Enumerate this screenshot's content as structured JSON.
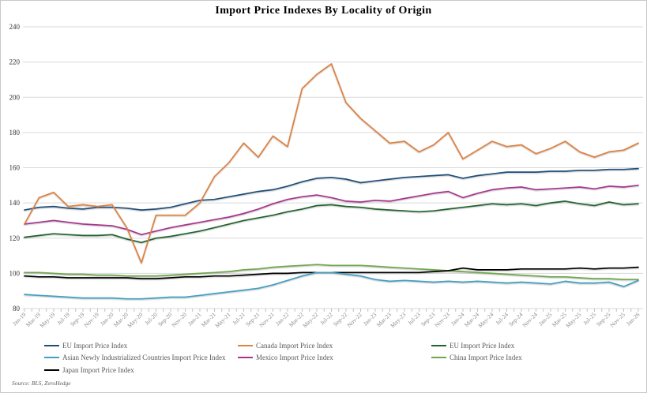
{
  "title": "Import Price Indexes By Locality of Origin",
  "source_note": "Source: BLS, ZeroHedge",
  "chart_data": {
    "type": "line",
    "title": "Import Price Indexes By Locality of Origin",
    "xlabel": "",
    "ylabel": "",
    "ylim": [
      80,
      240
    ],
    "y_ticks": [
      80,
      100,
      120,
      140,
      160,
      180,
      200,
      220,
      240
    ],
    "grid": "horizontal",
    "legend_position": "bottom",
    "x_interval": "2 months",
    "x_tick_labels": [
      "Jan-19",
      "Mar-19",
      "May-19",
      "Jul-19",
      "Sep-19",
      "Nov-19",
      "Jan-20",
      "Mar-20",
      "May-20",
      "Jul-20",
      "Sep-20",
      "Nov-20",
      "Jan-21",
      "Mar-21",
      "May-21",
      "Jul-21",
      "Sep-21",
      "Nov-21",
      "Jan-22",
      "Mar-22",
      "May-22",
      "Jul-22",
      "Sep-22",
      "Nov-22",
      "Jan-23",
      "Mar-23",
      "May-23",
      "Jul-23",
      "Sep-23",
      "Nov-23",
      "Jan-24",
      "Mar-24",
      "May-24",
      "Jul-24",
      "Sep-24",
      "Nov-24",
      "Jan-25",
      "Mar-25",
      "May-25",
      "Jul-25",
      "Sep-25",
      "Nov-25",
      "Jan-26"
    ],
    "series": [
      {
        "name": "EU Import Price Index",
        "color": "#1F4E79",
        "values": [
          136,
          137.5,
          138,
          137,
          136.5,
          137.5,
          137.5,
          137,
          136,
          136.5,
          137.5,
          139.5,
          141.5,
          142,
          143.5,
          145,
          146.5,
          147.5,
          149.5,
          152,
          154,
          154.5,
          153.5,
          151.5,
          152.5,
          153.5,
          154.5,
          155,
          155.5,
          156,
          154,
          155.5,
          156.5,
          157.5,
          157.5,
          157.5,
          158,
          158,
          158.5,
          158.5,
          159,
          159,
          159.5
        ]
      },
      {
        "name": "Canada Import Price Index",
        "color": "#E0813F",
        "values": [
          128,
          143,
          146,
          138,
          139,
          138,
          139,
          126,
          106,
          133,
          133,
          133,
          140,
          155,
          163,
          174,
          166,
          178,
          172,
          205,
          213,
          219,
          197,
          188,
          181,
          174,
          175,
          169,
          173,
          180,
          165,
          170,
          175,
          172,
          173,
          168,
          171,
          175,
          169,
          166,
          169,
          170,
          174
        ]
      },
      {
        "name": "EU Import Price Index",
        "color": "#20632F",
        "values": [
          120.5,
          121.5,
          122.5,
          122,
          121.5,
          121.5,
          122,
          119.5,
          117.5,
          120,
          121,
          122.5,
          124,
          126,
          128,
          130,
          131.5,
          133,
          135,
          136.5,
          138.5,
          139,
          138,
          137.5,
          136.5,
          136,
          135.5,
          135,
          135.5,
          136.5,
          137.5,
          138.5,
          139.5,
          139,
          139.5,
          138.5,
          140,
          141,
          139.5,
          138.5,
          140.5,
          139,
          139.5
        ]
      },
      {
        "name": "Asian Newly Industrialized Countries Import Price Index",
        "color": "#41A0C4",
        "values": [
          88,
          87.5,
          87,
          86.5,
          86,
          86,
          86,
          85.5,
          85.5,
          86,
          86.5,
          86.5,
          87.5,
          88.5,
          89.5,
          90.5,
          91.5,
          93.5,
          96,
          98.5,
          100.5,
          100.5,
          99.5,
          98.5,
          96.5,
          95.5,
          96,
          95.5,
          95,
          95.5,
          95,
          95.5,
          95,
          94.5,
          95,
          94.5,
          94,
          95.5,
          94.5,
          94.5,
          95,
          92.5,
          96
        ]
      },
      {
        "name": "Mexico Import Price Index",
        "color": "#A8348F",
        "values": [
          128,
          129,
          130,
          129,
          128,
          127.5,
          127,
          125,
          122,
          124,
          126,
          127.5,
          129,
          130.5,
          132,
          134,
          136.5,
          139.5,
          142,
          143.5,
          144.5,
          143,
          141,
          140.5,
          141.5,
          141,
          142.5,
          144,
          145.5,
          146.5,
          143,
          145.5,
          147.5,
          148.5,
          149,
          147.5,
          148,
          148.5,
          149,
          148,
          149.5,
          149,
          150
        ]
      },
      {
        "name": "China Import Price Index",
        "color": "#6EA84D",
        "values": [
          100.5,
          100.5,
          100,
          99.5,
          99.5,
          99,
          99,
          98.5,
          98.5,
          98.5,
          99,
          99.5,
          100,
          100.5,
          101,
          102,
          102.5,
          103.5,
          104,
          104.5,
          105,
          104.5,
          104.5,
          104.5,
          104,
          103.5,
          103,
          102.5,
          102,
          101.5,
          101,
          100.5,
          100,
          99.5,
          99,
          98.5,
          98,
          98,
          97.5,
          97,
          97,
          96.5,
          96.5
        ]
      },
      {
        "name": "Japan Import Price Index",
        "color": "#000000",
        "values": [
          98.5,
          98,
          98,
          97.5,
          97.5,
          97.5,
          97.5,
          97.5,
          97,
          97,
          97.5,
          98,
          98,
          98.5,
          98.5,
          99,
          99.5,
          100,
          100,
          100.5,
          100.5,
          100.5,
          100.5,
          100.5,
          100.5,
          100.5,
          100.5,
          100.5,
          101,
          101.5,
          103,
          102,
          102,
          102,
          102.5,
          102.5,
          102.5,
          102.5,
          103,
          102.5,
          103,
          103,
          103.5
        ]
      }
    ],
    "legend_columns": [
      [
        0,
        3,
        6
      ],
      [
        1,
        4
      ],
      [
        2,
        5
      ]
    ],
    "colors": {
      "gridline": "#dadada",
      "tick": "#c0c0c0",
      "y_label": "#333333",
      "x_label": "#8c8c8c",
      "legend_text": "#595959"
    }
  }
}
